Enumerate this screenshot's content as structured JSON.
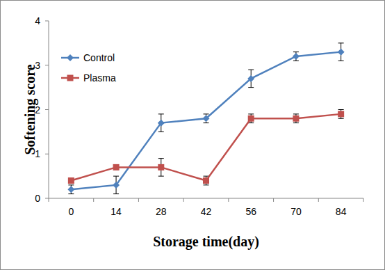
{
  "chart_data": {
    "type": "line",
    "x_label": "Storage time(day)",
    "y_label": "Softening score",
    "categories": [
      "0",
      "14",
      "28",
      "42",
      "56",
      "70",
      "84"
    ],
    "series": [
      {
        "name": "Control",
        "color": "#4f81bd",
        "marker": "diamond",
        "line_style": "solid",
        "values": [
          0.2,
          0.3,
          1.7,
          1.8,
          2.7,
          3.2,
          3.3
        ],
        "errors": [
          0.1,
          0.2,
          0.2,
          0.1,
          0.2,
          0.1,
          0.2
        ]
      },
      {
        "name": "Plasma",
        "color": "#c0504d",
        "marker": "square",
        "line_style": "solid",
        "values": [
          0.4,
          0.7,
          0.7,
          0.4,
          1.8,
          1.8,
          1.9
        ],
        "errors": [
          0.05,
          0.05,
          0.2,
          0.1,
          0.1,
          0.1,
          0.1
        ]
      }
    ],
    "ylim": [
      0,
      4
    ],
    "yticks": [
      0,
      1,
      2,
      3,
      4
    ],
    "grid": false,
    "legend": "top-left"
  }
}
